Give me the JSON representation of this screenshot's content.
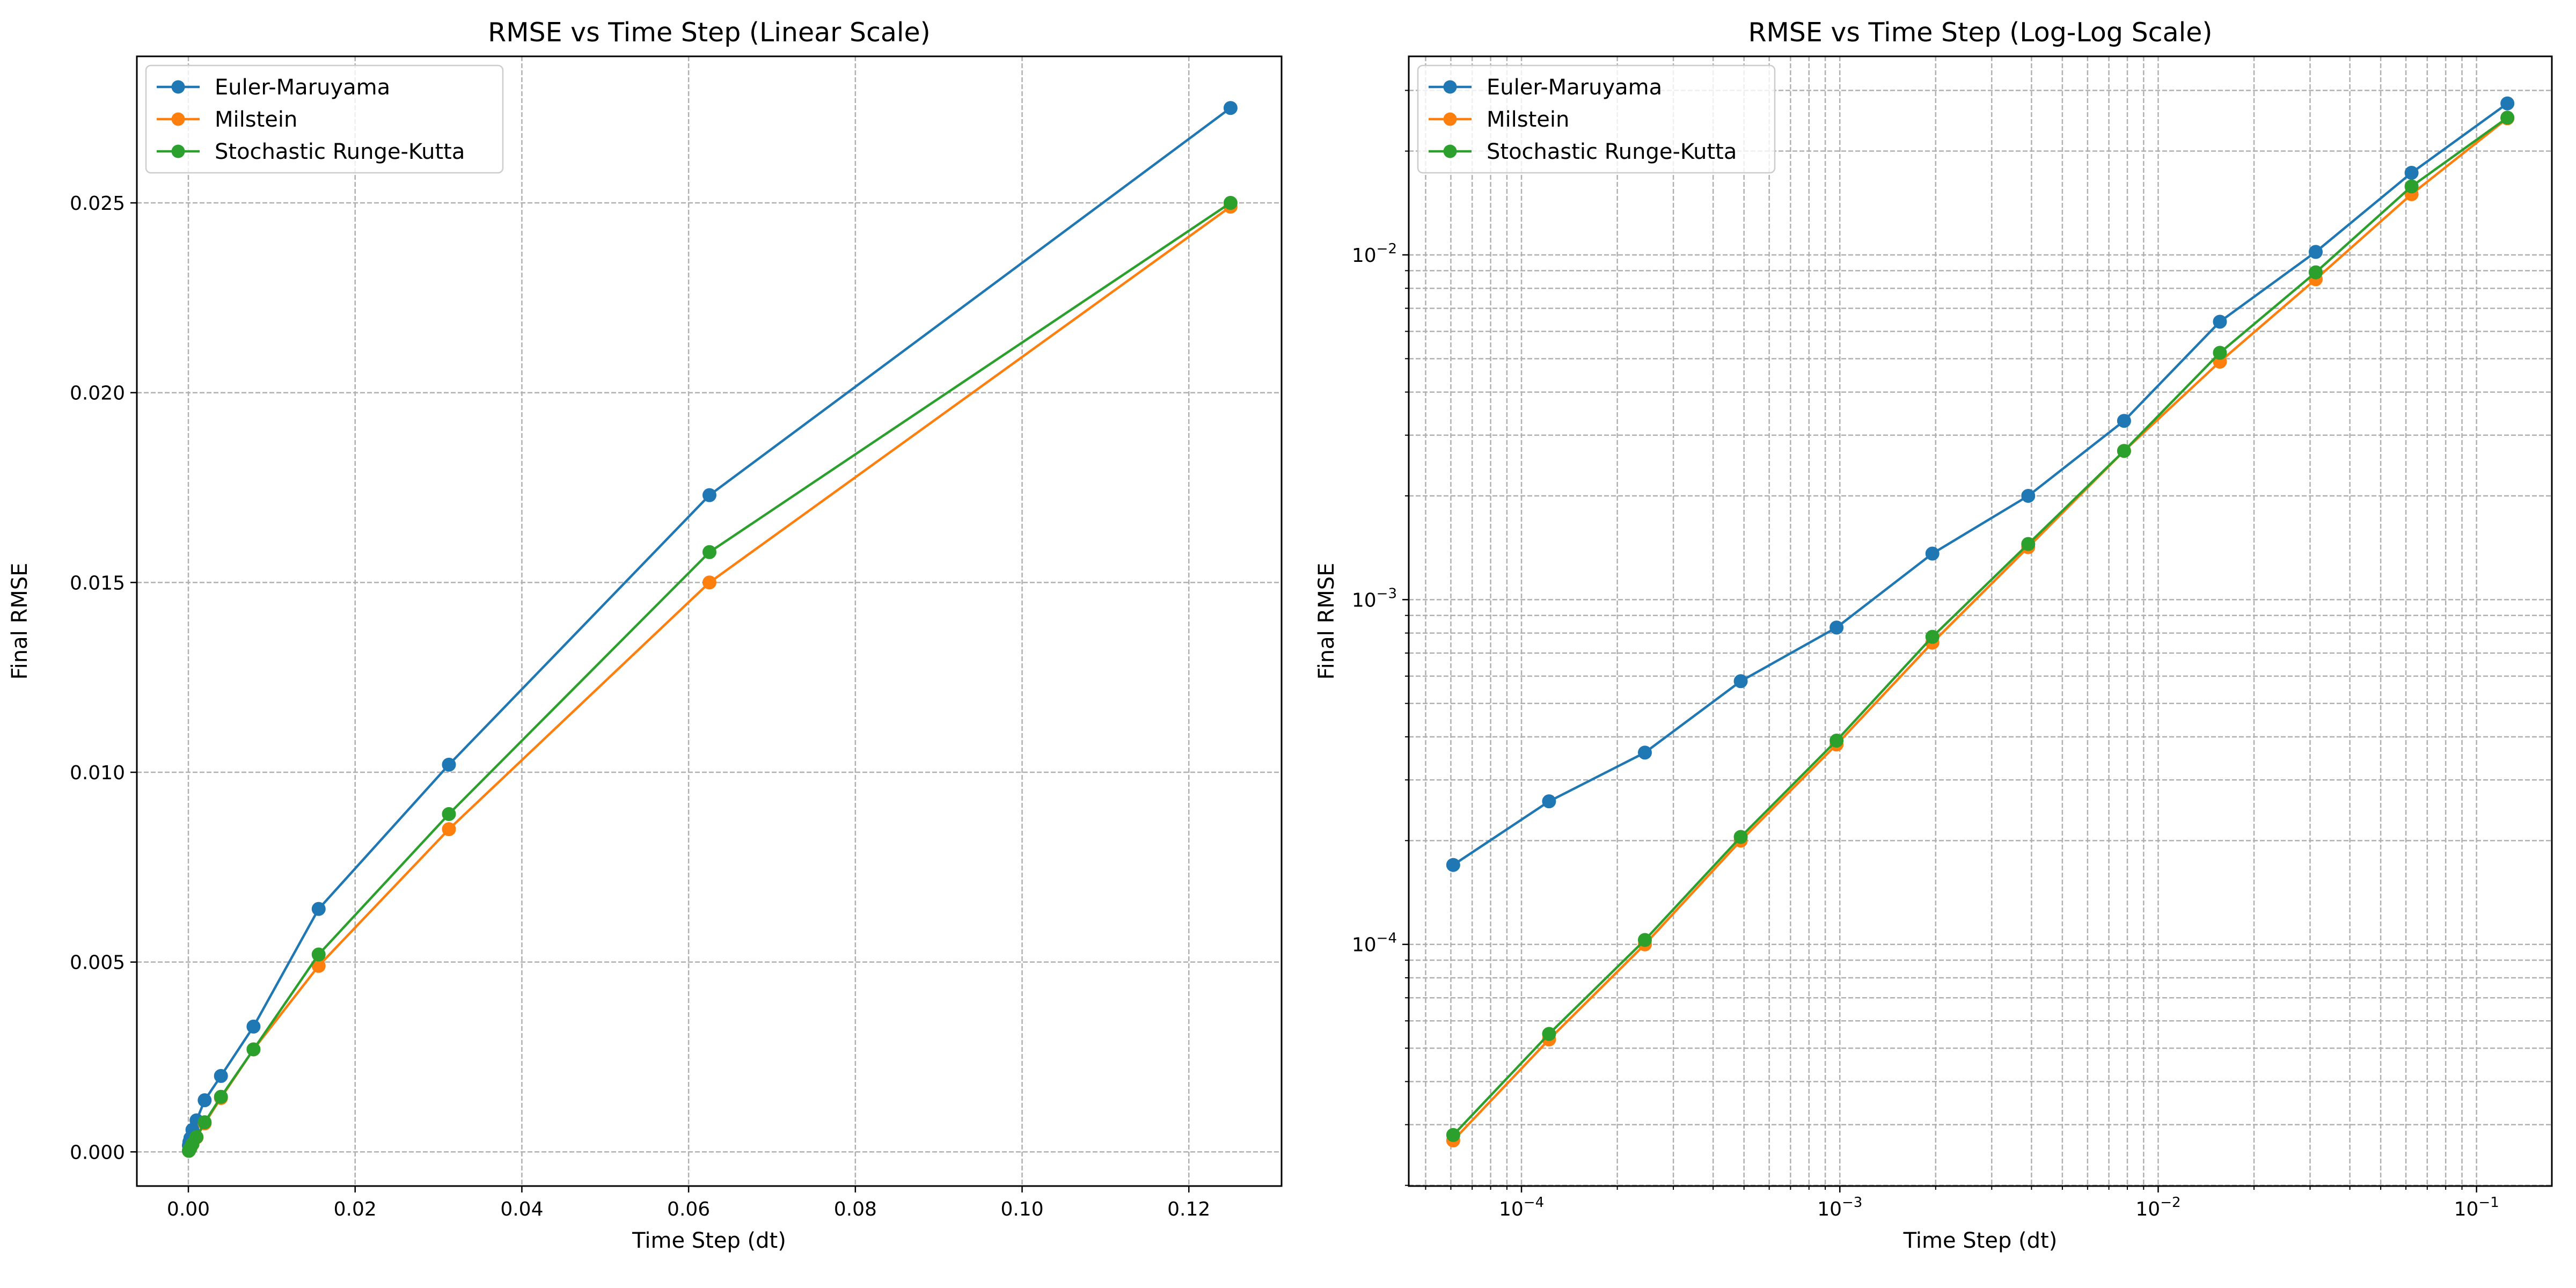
{
  "chart_data": [
    {
      "type": "line",
      "title": "RMSE vs Time Step (Linear Scale)",
      "xlabel": "Time Step (dt)",
      "ylabel": "Final RMSE",
      "xscale": "linear",
      "yscale": "linear",
      "xlim": [
        -0.00618,
        0.13112
      ],
      "ylim": [
        -0.0009,
        0.02886
      ],
      "xticks": [
        0.0,
        0.02,
        0.04,
        0.06,
        0.08,
        0.1,
        0.12
      ],
      "xtick_labels": [
        "0.00",
        "0.02",
        "0.04",
        "0.06",
        "0.08",
        "0.10",
        "0.12"
      ],
      "yticks": [
        0.0,
        0.005,
        0.01,
        0.015,
        0.02,
        0.025
      ],
      "ytick_labels": [
        "0.000",
        "0.005",
        "0.010",
        "0.015",
        "0.020",
        "0.025"
      ],
      "grid": true,
      "legend_position": "top-left",
      "x": [
        0.125,
        0.0625,
        0.03125,
        0.015625,
        0.0078125,
        0.00390625,
        0.001953125,
        0.0009765625,
        0.00048828125,
        0.000244140625,
        0.0001220703125,
        6.103515625e-05
      ],
      "series": [
        {
          "name": "Euler-Maruyama",
          "color": "#1f77b4",
          "values": [
            0.0275,
            0.0173,
            0.0102,
            0.0064,
            0.0033,
            0.002,
            0.00136,
            0.00083,
            0.00058,
            0.00036,
            0.00026,
            0.00017
          ]
        },
        {
          "name": "Milstein",
          "color": "#ff7f0e",
          "values": [
            0.0249,
            0.015,
            0.0085,
            0.0049,
            0.0027,
            0.00142,
            0.00075,
            0.00038,
            0.0002,
            0.0001,
            5.3e-05,
            2.7e-05
          ]
        },
        {
          "name": "Stochastic Runge-Kutta",
          "color": "#2ca02c",
          "values": [
            0.025,
            0.0158,
            0.0089,
            0.0052,
            0.0027,
            0.00145,
            0.00078,
            0.00039,
            0.000205,
            0.000103,
            5.5e-05,
            2.8e-05
          ]
        }
      ]
    },
    {
      "type": "line",
      "title": "RMSE vs Time Step (Log-Log Scale)",
      "xlabel": "Time Step (dt)",
      "ylabel": "Final RMSE",
      "xscale": "log",
      "yscale": "log",
      "xlim": [
        4.425e-05,
        0.1724
      ],
      "ylim": [
        1.991e-05,
        0.03766
      ],
      "xticks": [
        0.0001,
        0.001,
        0.01,
        0.1
      ],
      "xtick_labels": [
        {
          "base": "10",
          "exp": "−4"
        },
        {
          "base": "10",
          "exp": "−3"
        },
        {
          "base": "10",
          "exp": "−2"
        },
        {
          "base": "10",
          "exp": "−1"
        }
      ],
      "yticks": [
        0.0001,
        0.001,
        0.01
      ],
      "ytick_labels": [
        {
          "base": "10",
          "exp": "−4"
        },
        {
          "base": "10",
          "exp": "−3"
        },
        {
          "base": "10",
          "exp": "−2"
        }
      ],
      "grid": true,
      "minor_grid": true,
      "legend_position": "top-left",
      "x": [
        0.125,
        0.0625,
        0.03125,
        0.015625,
        0.0078125,
        0.00390625,
        0.001953125,
        0.0009765625,
        0.00048828125,
        0.000244140625,
        0.0001220703125,
        6.103515625e-05
      ],
      "series": [
        {
          "name": "Euler-Maruyama",
          "color": "#1f77b4",
          "values": [
            0.0275,
            0.0173,
            0.0102,
            0.0064,
            0.0033,
            0.002,
            0.00136,
            0.00083,
            0.00058,
            0.00036,
            0.00026,
            0.00017
          ]
        },
        {
          "name": "Milstein",
          "color": "#ff7f0e",
          "values": [
            0.0249,
            0.015,
            0.0085,
            0.0049,
            0.0027,
            0.00142,
            0.00075,
            0.00038,
            0.0002,
            0.0001,
            5.3e-05,
            2.7e-05
          ]
        },
        {
          "name": "Stochastic Runge-Kutta",
          "color": "#2ca02c",
          "values": [
            0.025,
            0.0158,
            0.0089,
            0.0052,
            0.0027,
            0.00145,
            0.00078,
            0.00039,
            0.000205,
            0.000103,
            5.5e-05,
            2.8e-05
          ]
        }
      ]
    }
  ]
}
